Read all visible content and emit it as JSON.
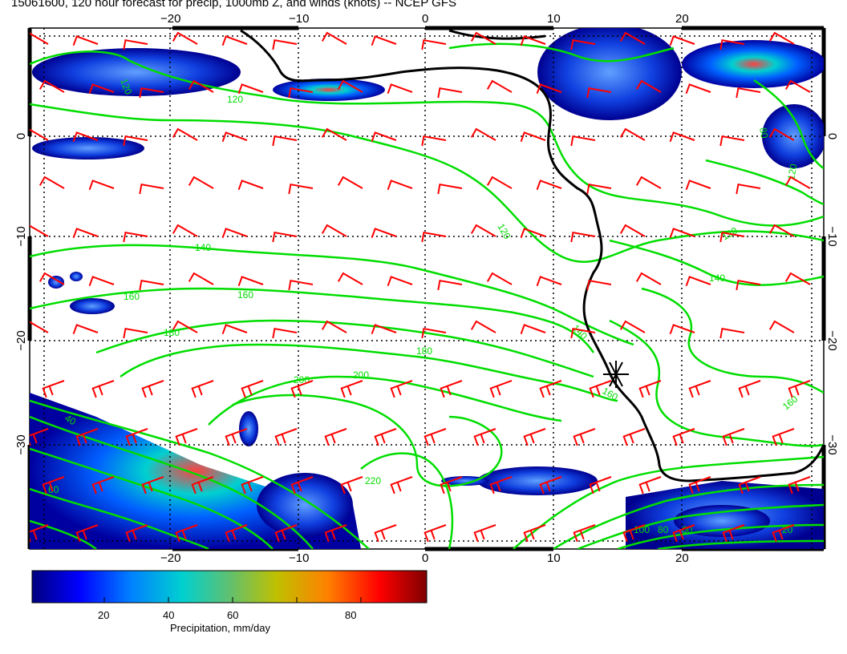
{
  "title": "15061600, 120 hour forecast for precip, 1000mb Z, and winds (knots) -- NCEP GFS",
  "lon_ticks": [
    "−20",
    "−10",
    "0",
    "10",
    "20"
  ],
  "lat_ticks_left": [
    "0",
    "−10",
    "−20",
    "−30"
  ],
  "lat_ticks_right": [
    "0",
    "−10",
    "−20",
    "−30"
  ],
  "contour_labels": [
    "120",
    "120",
    "140",
    "160",
    "160",
    "180",
    "180",
    "200",
    "200",
    "220",
    "120",
    "140",
    "140",
    "120",
    "160",
    "160",
    "60",
    "40",
    "100",
    "80",
    "60",
    "20",
    "80",
    "120"
  ],
  "colorbar": {
    "ticks": [
      "20",
      "40",
      "60",
      "80"
    ],
    "label": "Precipitation, mm/day",
    "colors": [
      "#00007f",
      "#0000ff",
      "#0080ff",
      "#00d0d0",
      "#40c080",
      "#c0c000",
      "#ff8000",
      "#ff0000",
      "#7f0000"
    ]
  },
  "colors": {
    "contour": "#00dd00",
    "barb": "#ff0000",
    "coast": "#000000"
  },
  "marker": "station-star"
}
